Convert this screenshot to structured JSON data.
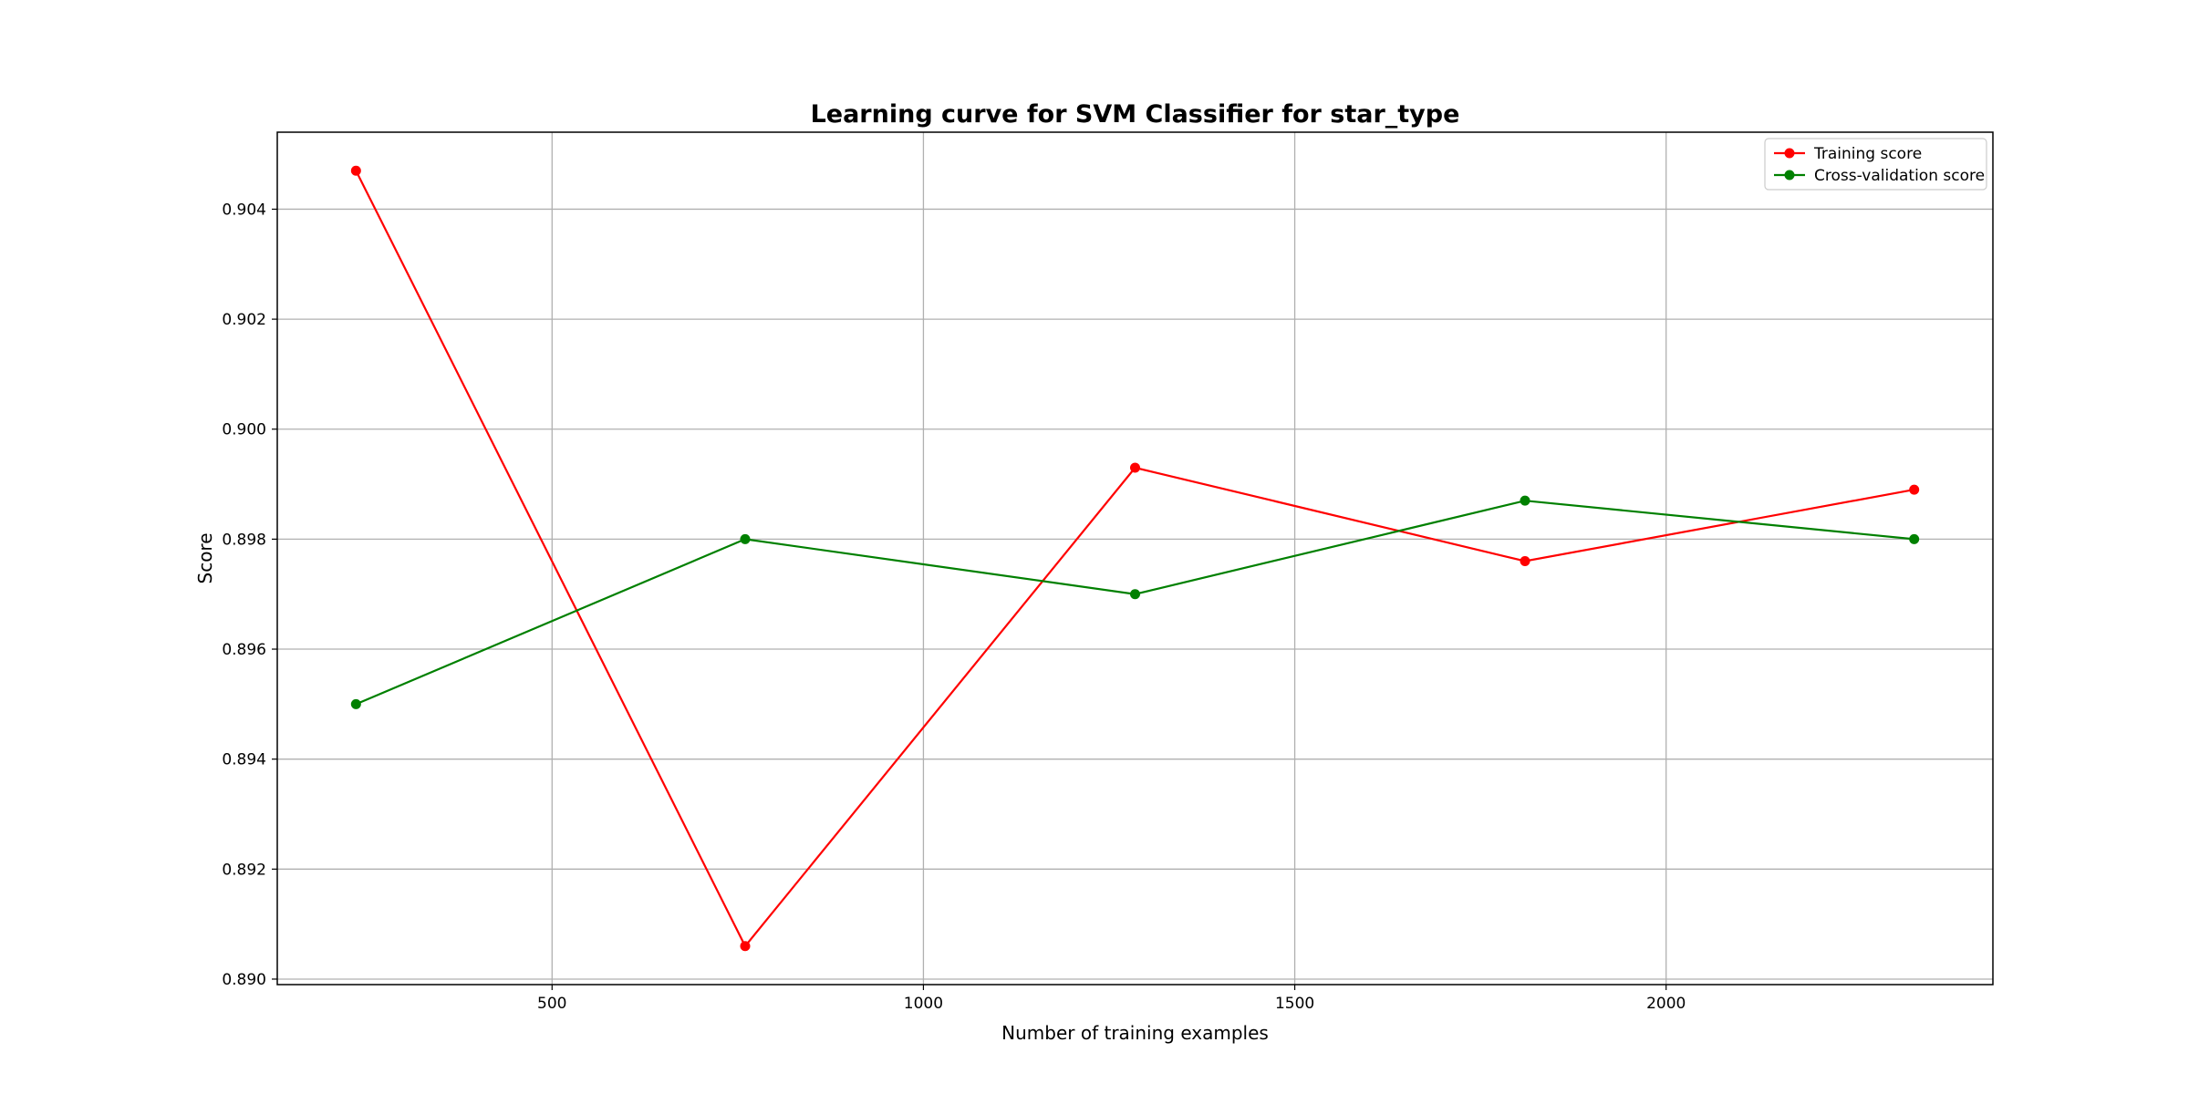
{
  "chart_data": {
    "type": "line",
    "title": "Learning curve for SVM Classifier for star_type",
    "xlabel": "Number of training examples",
    "ylabel": "Score",
    "xlim": [
      130,
      2440
    ],
    "ylim": [
      0.8899,
      0.9054
    ],
    "x_ticks": [
      500,
      1000,
      1500,
      2000
    ],
    "y_ticks": [
      0.89,
      0.892,
      0.894,
      0.896,
      0.898,
      0.9,
      0.902,
      0.904
    ],
    "grid": true,
    "legend_position": "top-right",
    "x": [
      236,
      760,
      1285,
      1810,
      2334
    ],
    "series": [
      {
        "name": "Training score",
        "color": "#ff0000",
        "values": [
          0.9047,
          0.8906,
          0.8993,
          0.8976,
          0.8989
        ]
      },
      {
        "name": "Cross-validation score",
        "color": "#008000",
        "values": [
          0.895,
          0.898,
          0.897,
          0.8987,
          0.898
        ]
      }
    ]
  }
}
